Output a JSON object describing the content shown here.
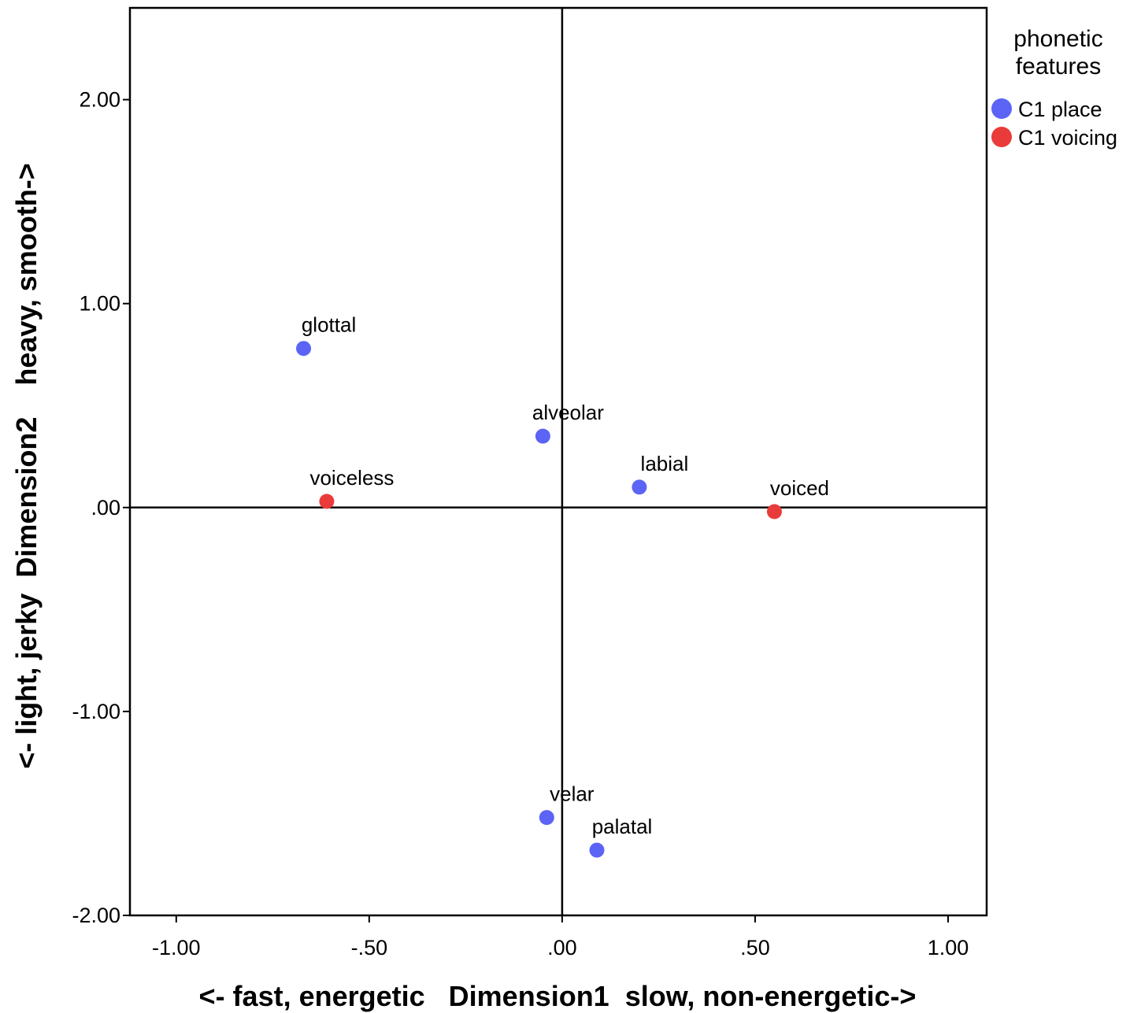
{
  "chart_data": {
    "type": "scatter",
    "xlabel": "<- fast, energetic   Dimension1  slow, non-energetic->",
    "ylabel": "<- light, jerky  Dimension2    heavy, smooth->",
    "xlim": [
      -1.12,
      1.1
    ],
    "ylim": [
      -2.0,
      2.45
    ],
    "x_ticks": [
      -1.0,
      -0.5,
      0.0,
      0.5,
      1.0
    ],
    "x_tick_labels": [
      "-1.00",
      "-.50",
      ".00",
      ".50",
      "1.00"
    ],
    "y_ticks": [
      -2.0,
      -1.0,
      0.0,
      1.0,
      2.0
    ],
    "y_tick_labels": [
      "-2.00",
      "-1.00",
      ".00",
      "1.00",
      "2.00"
    ],
    "reference_lines": {
      "x": 0,
      "y": 0
    },
    "grid": false,
    "legend": {
      "title_lines": [
        "phonetic",
        "features"
      ],
      "placement": "top-right-outside"
    },
    "series": [
      {
        "name": "C1 place",
        "color": "#5b64f5",
        "points": [
          {
            "label": "glottal",
            "x": -0.67,
            "y": 0.78
          },
          {
            "label": "alveolar",
            "x": -0.05,
            "y": 0.35
          },
          {
            "label": "labial",
            "x": 0.2,
            "y": 0.1
          },
          {
            "label": "velar",
            "x": -0.04,
            "y": -1.52
          },
          {
            "label": "palatal",
            "x": 0.09,
            "y": -1.68
          }
        ]
      },
      {
        "name": "C1 voicing",
        "color": "#ea3b3b",
        "points": [
          {
            "label": "voiceless",
            "x": -0.61,
            "y": 0.03
          },
          {
            "label": "voiced",
            "x": 0.55,
            "y": -0.02
          }
        ]
      }
    ]
  }
}
